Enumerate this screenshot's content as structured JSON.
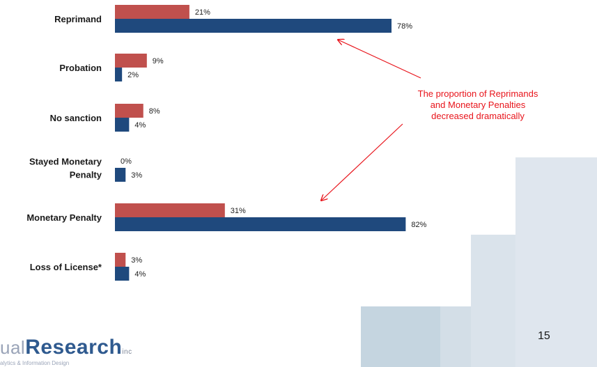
{
  "chart_data": {
    "type": "bar",
    "orientation": "horizontal",
    "categories": [
      "Reprimand",
      "Probation",
      "No sanction",
      "Stayed Monetary Penalty",
      "Monetary Penalty",
      "Loss of License*"
    ],
    "category_lines": [
      [
        "Reprimand"
      ],
      [
        "Probation"
      ],
      [
        "No sanction"
      ],
      [
        "Stayed Monetary",
        "Penalty"
      ],
      [
        "Monetary Penalty"
      ],
      [
        "Loss of License*"
      ]
    ],
    "series": [
      {
        "values": [
          21,
          9,
          8,
          0,
          31,
          3
        ],
        "labels": [
          "21%",
          "9%",
          "8%",
          "0%",
          "31%",
          "3%"
        ],
        "color": "#c0504d"
      },
      {
        "values": [
          78,
          2,
          4,
          3,
          82,
          4
        ],
        "labels": [
          "78%",
          "2%",
          "4%",
          "3%",
          "82%",
          "4%"
        ],
        "color": "#1f497d"
      }
    ],
    "xlim": [
      0,
      100
    ],
    "grid": false,
    "legend": "none"
  },
  "annotation": {
    "text": "The proportion of Reprimands\nand Monetary Penalties\ndecreased dramatically",
    "color": "#e8141b"
  },
  "page_number": "15",
  "logo": {
    "prefix": "ual",
    "bold": "Research",
    "suffix": "inc",
    "tagline": "alytics & Information Design"
  },
  "colors": {
    "decor_light": "#dfe6ee",
    "decor_mid": "#cfdce6",
    "decor_dark": "#c3d2de"
  }
}
